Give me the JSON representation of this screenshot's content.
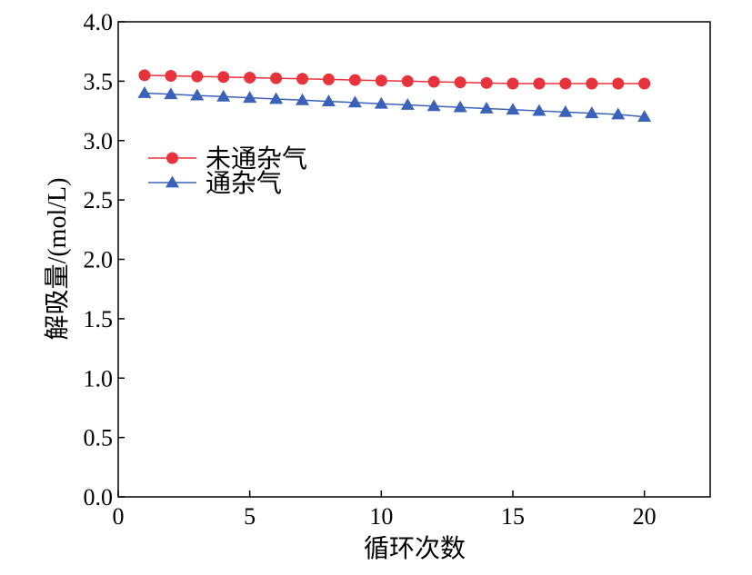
{
  "chart_data": {
    "type": "line",
    "xlabel": "循环次数",
    "ylabel": "解吸量/(mol/L)",
    "xlim": [
      0,
      22.5
    ],
    "ylim": [
      0,
      4.0
    ],
    "x_ticks": [
      "0",
      "5",
      "10",
      "15",
      "20"
    ],
    "x_tick_values": [
      0,
      5,
      10,
      15,
      20
    ],
    "y_ticks": [
      "0.0",
      "0.5",
      "1.0",
      "1.5",
      "2.0",
      "2.5",
      "3.0",
      "3.5",
      "4.0"
    ],
    "y_tick_values": [
      0,
      0.5,
      1.0,
      1.5,
      2.0,
      2.5,
      3.0,
      3.5,
      4.0
    ],
    "x": [
      1,
      2,
      3,
      4,
      5,
      6,
      7,
      8,
      9,
      10,
      11,
      12,
      13,
      14,
      15,
      16,
      17,
      18,
      19,
      20
    ],
    "legend_position": "upper-left",
    "grid": false,
    "series": [
      {
        "name": "未通杂气",
        "marker": "circle",
        "color": "#e8323c",
        "line_color": "#e8323c",
        "values": [
          3.55,
          3.545,
          3.54,
          3.535,
          3.53,
          3.525,
          3.52,
          3.515,
          3.51,
          3.505,
          3.5,
          3.495,
          3.49,
          3.485,
          3.48,
          3.48,
          3.48,
          3.48,
          3.48,
          3.48
        ]
      },
      {
        "name": "通杂气",
        "marker": "triangle",
        "color": "#3a62b8",
        "line_color": "#3a62b8",
        "values": [
          3.4,
          3.39,
          3.38,
          3.37,
          3.36,
          3.35,
          3.34,
          3.33,
          3.32,
          3.31,
          3.3,
          3.29,
          3.28,
          3.27,
          3.26,
          3.25,
          3.24,
          3.23,
          3.22,
          3.2
        ]
      }
    ]
  }
}
